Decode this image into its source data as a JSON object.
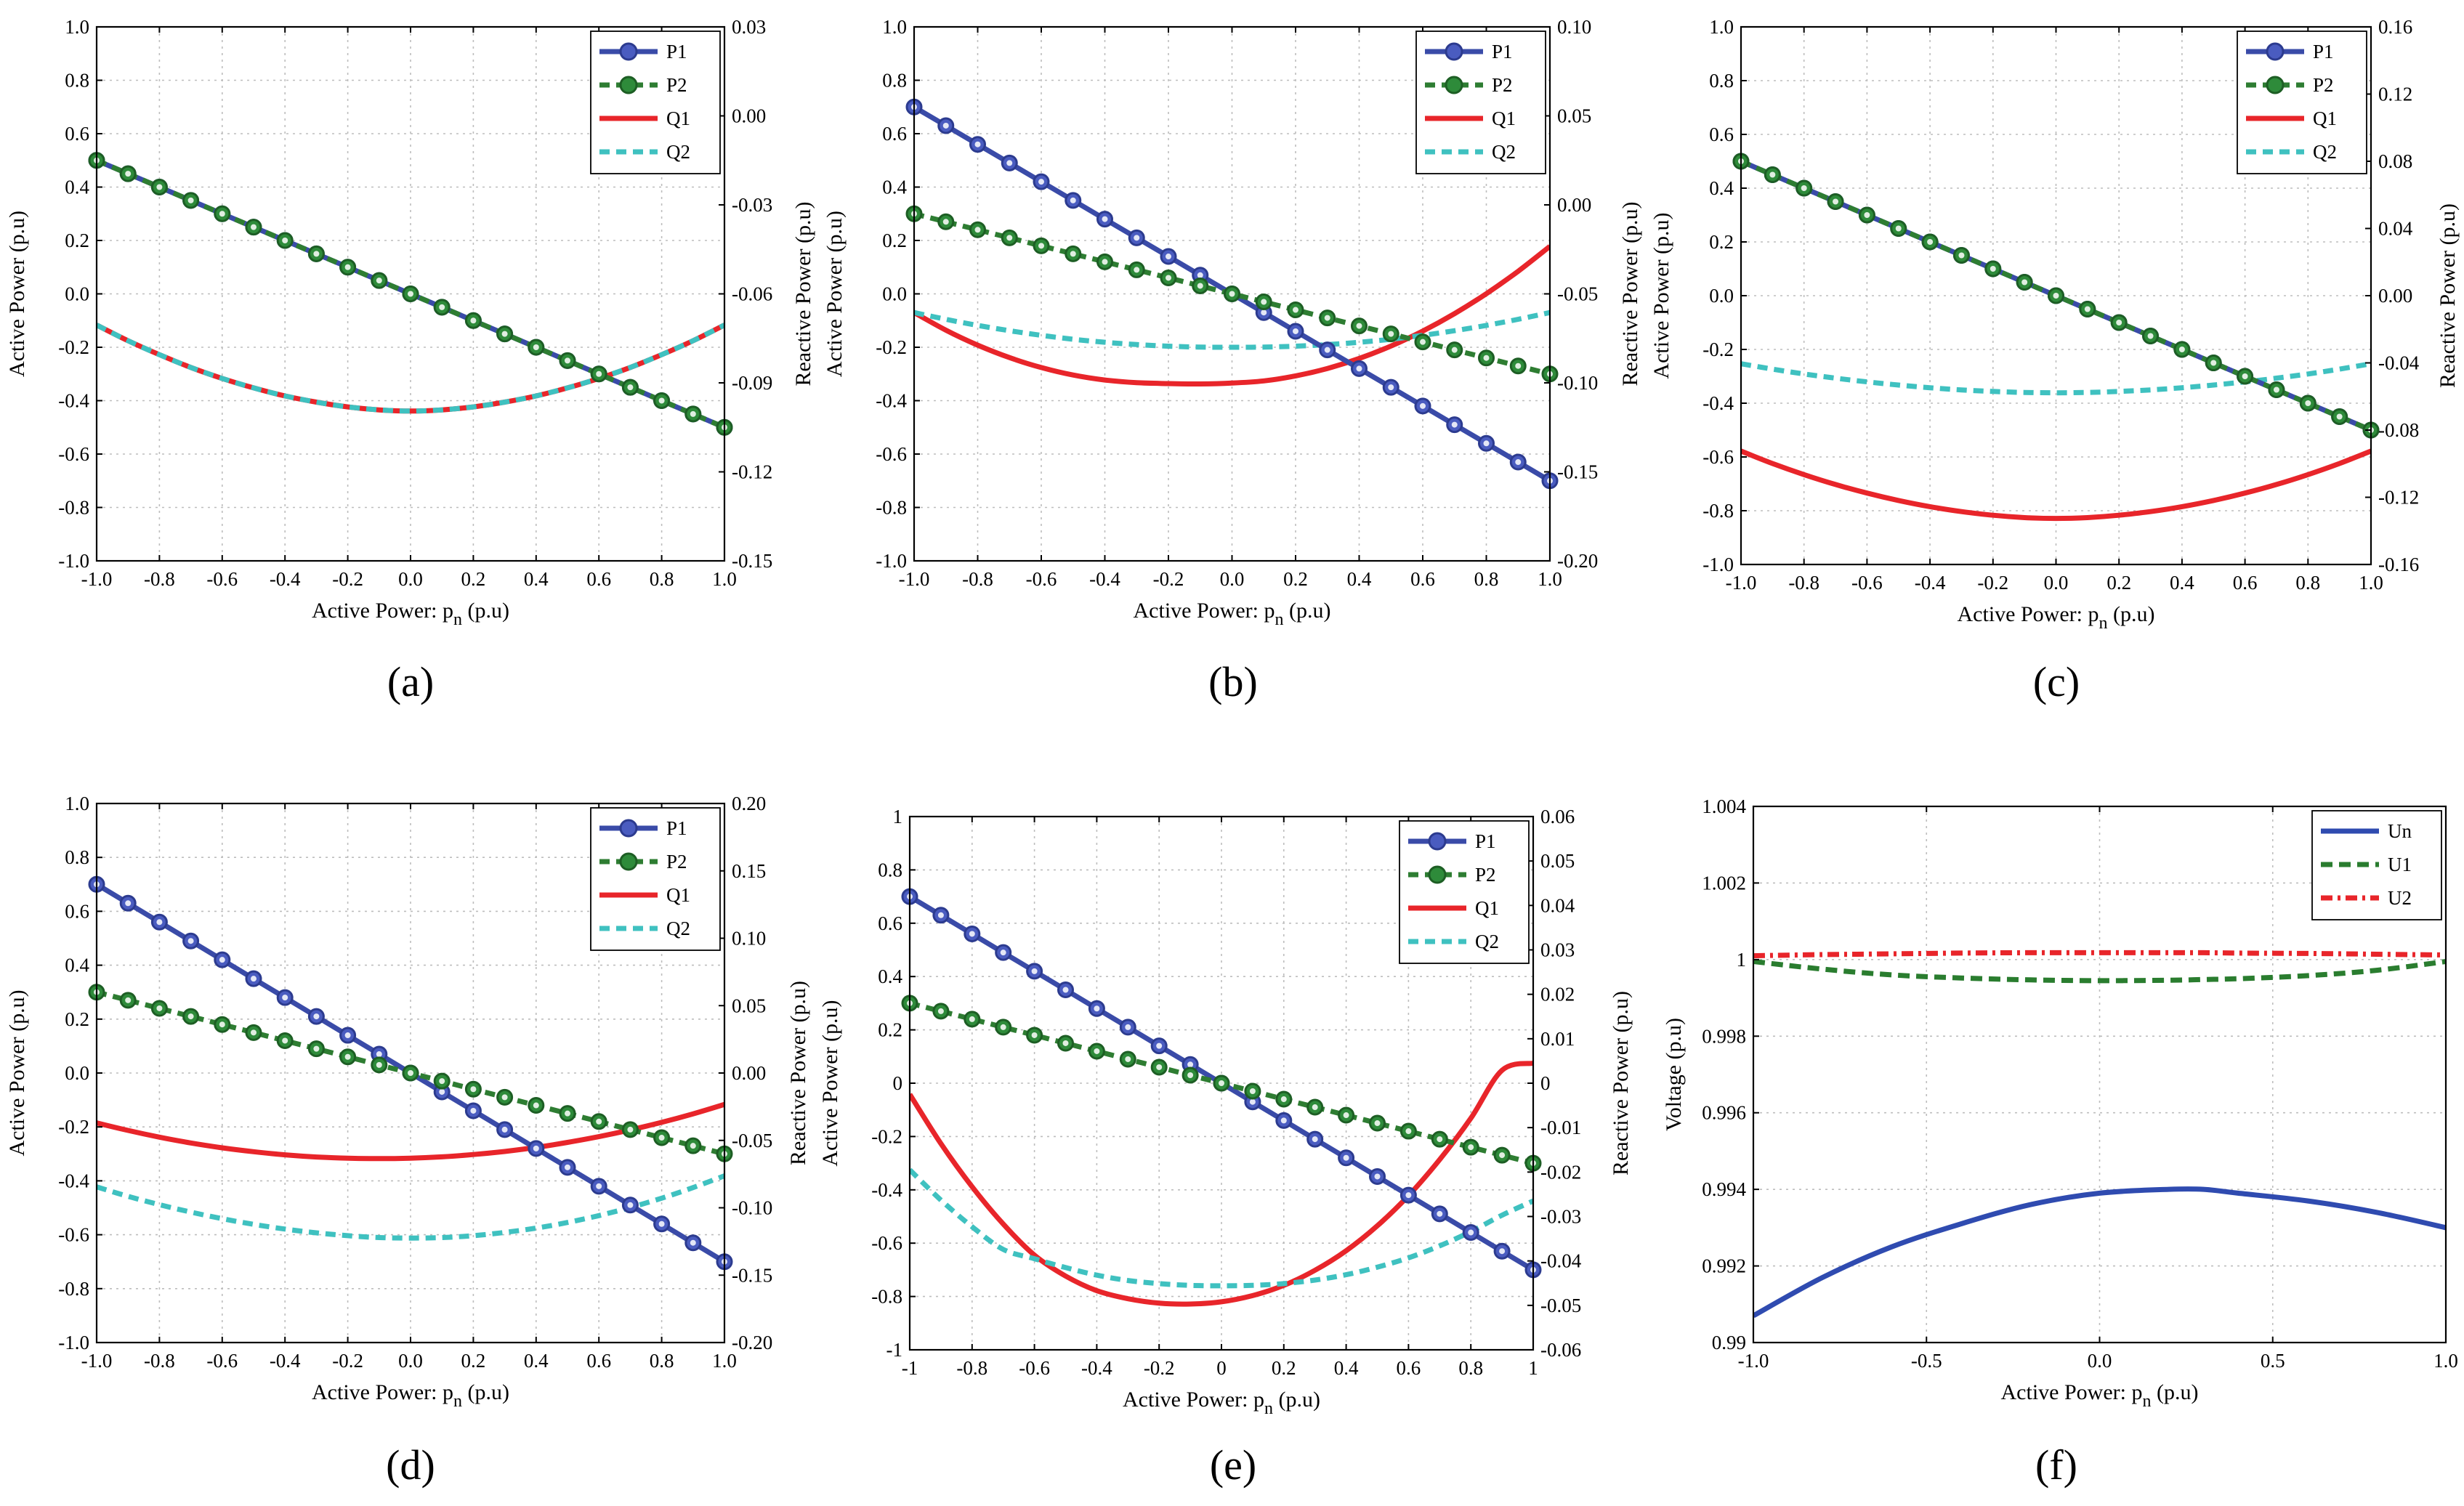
{
  "chart_data": [
    {
      "type": "line",
      "panel": "a",
      "sub_label": "(a)",
      "xlabel": "Active Power: p",
      "xlabel_sub": "n",
      "xlabel_suffix": " (p.u)",
      "ylabel": "Active Power (p.u)",
      "y2label": "Reactive Power (p.u)",
      "xlim": [
        -1,
        1
      ],
      "ylim": [
        -1,
        1
      ],
      "y2lim": [
        -0.15,
        0.03
      ],
      "xticks": [
        "-1.0",
        "-0.8",
        "-0.6",
        "-0.4",
        "-0.2",
        "0.0",
        "0.2",
        "0.4",
        "0.6",
        "0.8",
        "1.0"
      ],
      "yticks": [
        "-1.0",
        "-0.8",
        "-0.6",
        "-0.4",
        "-0.2",
        "0.0",
        "0.2",
        "0.4",
        "0.6",
        "0.8",
        "1.0"
      ],
      "y2ticks": [
        "-0.15",
        "-0.12",
        "-0.09",
        "-0.06",
        "-0.03",
        "0.00",
        "0.03"
      ],
      "legend": [
        "P1",
        "P2",
        "Q1",
        "Q2"
      ],
      "legend_position": "top-right",
      "x": [
        -1.0,
        -0.9,
        -0.8,
        -0.7,
        -0.6,
        -0.5,
        -0.4,
        -0.3,
        -0.2,
        -0.1,
        0.0,
        0.1,
        0.2,
        0.3,
        0.4,
        0.5,
        0.6,
        0.7,
        0.8,
        0.9,
        1.0
      ],
      "series": [
        {
          "name": "P1",
          "axis": "left",
          "values": [
            0.5,
            0.45,
            0.4,
            0.35,
            0.3,
            0.25,
            0.2,
            0.15,
            0.1,
            0.05,
            0.0,
            -0.05,
            -0.1,
            -0.15,
            -0.2,
            -0.25,
            -0.3,
            -0.35,
            -0.4,
            -0.45,
            -0.5
          ]
        },
        {
          "name": "P2",
          "axis": "left",
          "values": [
            0.5,
            0.45,
            0.4,
            0.35,
            0.3,
            0.25,
            0.2,
            0.15,
            0.1,
            0.05,
            0.0,
            -0.05,
            -0.1,
            -0.15,
            -0.2,
            -0.25,
            -0.3,
            -0.35,
            -0.4,
            -0.45,
            -0.5
          ]
        },
        {
          "name": "Q1",
          "axis": "right",
          "values": [
            -0.0705,
            -0.0758,
            -0.0805,
            -0.0848,
            -0.0885,
            -0.0917,
            -0.0944,
            -0.0965,
            -0.0981,
            -0.0991,
            -0.0995,
            -0.0991,
            -0.0981,
            -0.0965,
            -0.0944,
            -0.0917,
            -0.0885,
            -0.0848,
            -0.0805,
            -0.0758,
            -0.0705
          ]
        },
        {
          "name": "Q2",
          "axis": "right",
          "values": [
            -0.0705,
            -0.0758,
            -0.0805,
            -0.0848,
            -0.0885,
            -0.0917,
            -0.0944,
            -0.0965,
            -0.0981,
            -0.0991,
            -0.0995,
            -0.0991,
            -0.0981,
            -0.0965,
            -0.0944,
            -0.0917,
            -0.0885,
            -0.0848,
            -0.0805,
            -0.0758,
            -0.0705
          ]
        }
      ]
    },
    {
      "type": "line",
      "panel": "b",
      "sub_label": "(b)",
      "xlabel": "Active Power: p",
      "xlabel_sub": "n",
      "xlabel_suffix": " (p.u)",
      "ylabel": "Active Power (p.u)",
      "y2label": "Reactive Power (p.u)",
      "xlim": [
        -1,
        1
      ],
      "ylim": [
        -1,
        1
      ],
      "y2lim": [
        -0.2,
        0.1
      ],
      "xticks": [
        "-1.0",
        "-0.8",
        "-0.6",
        "-0.4",
        "-0.2",
        "0.0",
        "0.2",
        "0.4",
        "0.6",
        "0.8",
        "1.0"
      ],
      "yticks": [
        "-1.0",
        "-0.8",
        "-0.6",
        "-0.4",
        "-0.2",
        "0.0",
        "0.2",
        "0.4",
        "0.6",
        "0.8",
        "1.0"
      ],
      "y2ticks": [
        "-0.20",
        "-0.15",
        "-0.10",
        "-0.05",
        "0.00",
        "0.05",
        "0.10"
      ],
      "legend": [
        "P1",
        "P2",
        "Q1",
        "Q2"
      ],
      "legend_position": "top-right",
      "x": [
        -1.0,
        -0.9,
        -0.8,
        -0.7,
        -0.6,
        -0.5,
        -0.4,
        -0.3,
        -0.2,
        -0.1,
        0.0,
        0.1,
        0.2,
        0.3,
        0.4,
        0.5,
        0.6,
        0.7,
        0.8,
        0.9,
        1.0
      ],
      "series": [
        {
          "name": "P1",
          "axis": "left",
          "values": [
            0.7,
            0.63,
            0.56,
            0.49,
            0.42,
            0.35,
            0.28,
            0.21,
            0.14,
            0.07,
            0.0,
            -0.07,
            -0.14,
            -0.21,
            -0.28,
            -0.35,
            -0.42,
            -0.49,
            -0.56,
            -0.63,
            -0.7
          ]
        },
        {
          "name": "P2",
          "axis": "left",
          "values": [
            0.3,
            0.27,
            0.24,
            0.21,
            0.18,
            0.15,
            0.12,
            0.09,
            0.06,
            0.03,
            0.0,
            -0.03,
            -0.06,
            -0.09,
            -0.12,
            -0.15,
            -0.18,
            -0.21,
            -0.24,
            -0.27,
            -0.3
          ]
        },
        {
          "name": "Q1",
          "axis": "right",
          "values": [
            -0.0605,
            -0.0704,
            -0.0788,
            -0.0858,
            -0.0914,
            -0.0956,
            -0.0984,
            -0.0999,
            -0.1004,
            -0.1006,
            -0.1001,
            -0.0989,
            -0.0961,
            -0.0919,
            -0.0863,
            -0.0793,
            -0.0709,
            -0.0611,
            -0.0499,
            -0.0373,
            -0.0233
          ]
        },
        {
          "name": "Q2",
          "axis": "right",
          "values": [
            -0.0605,
            -0.0643,
            -0.0677,
            -0.0707,
            -0.0733,
            -0.0755,
            -0.0772,
            -0.0785,
            -0.0794,
            -0.0799,
            -0.08,
            -0.0799,
            -0.0794,
            -0.0785,
            -0.0772,
            -0.0755,
            -0.0733,
            -0.0707,
            -0.0677,
            -0.0643,
            -0.0605
          ]
        }
      ]
    },
    {
      "type": "line",
      "panel": "c",
      "sub_label": "(c)",
      "xlabel": "Active Power: p",
      "xlabel_sub": "n",
      "xlabel_suffix": " (p.u)",
      "ylabel": "Active Power (p.u)",
      "y2label": "Reactive Power (p.u)",
      "xlim": [
        -1,
        1
      ],
      "ylim": [
        -1,
        1
      ],
      "y2lim": [
        -0.16,
        0.16
      ],
      "xticks": [
        "-1.0",
        "-0.8",
        "-0.6",
        "-0.4",
        "-0.2",
        "0.0",
        "0.2",
        "0.4",
        "0.6",
        "0.8",
        "1.0"
      ],
      "yticks": [
        "-1.0",
        "-0.8",
        "-0.6",
        "-0.4",
        "-0.2",
        "0.0",
        "0.2",
        "0.4",
        "0.6",
        "0.8",
        "1.0"
      ],
      "y2ticks": [
        "-0.16",
        "-0.12",
        "-0.08",
        "-0.04",
        "0.00",
        "0.04",
        "0.08",
        "0.12",
        "0.16"
      ],
      "legend": [
        "P1",
        "P2",
        "Q1",
        "Q2"
      ],
      "legend_position": "top-right",
      "x": [
        -1.0,
        -0.9,
        -0.8,
        -0.7,
        -0.6,
        -0.5,
        -0.4,
        -0.3,
        -0.2,
        -0.1,
        0.0,
        0.1,
        0.2,
        0.3,
        0.4,
        0.5,
        0.6,
        0.7,
        0.8,
        0.9,
        1.0
      ],
      "series": [
        {
          "name": "P1",
          "axis": "left",
          "values": [
            0.5,
            0.45,
            0.4,
            0.35,
            0.3,
            0.25,
            0.2,
            0.15,
            0.1,
            0.05,
            0.0,
            -0.05,
            -0.1,
            -0.15,
            -0.2,
            -0.25,
            -0.3,
            -0.35,
            -0.4,
            -0.45,
            -0.5
          ]
        },
        {
          "name": "P2",
          "axis": "left",
          "values": [
            0.5,
            0.45,
            0.4,
            0.35,
            0.3,
            0.25,
            0.2,
            0.15,
            0.1,
            0.05,
            0.0,
            -0.05,
            -0.1,
            -0.15,
            -0.2,
            -0.25,
            -0.3,
            -0.35,
            -0.4,
            -0.45,
            -0.5
          ]
        },
        {
          "name": "Q1",
          "axis": "right",
          "values": [
            -0.0925,
            -0.0999,
            -0.1065,
            -0.1124,
            -0.1175,
            -0.1219,
            -0.1256,
            -0.1285,
            -0.1307,
            -0.1321,
            -0.1326,
            -0.1321,
            -0.1307,
            -0.1285,
            -0.1256,
            -0.1219,
            -0.1175,
            -0.1124,
            -0.1065,
            -0.0999,
            -0.0925
          ]
        },
        {
          "name": "Q2",
          "axis": "right",
          "values": [
            -0.0405,
            -0.0437,
            -0.0466,
            -0.0491,
            -0.0513,
            -0.0532,
            -0.0548,
            -0.0561,
            -0.057,
            -0.0576,
            -0.0578,
            -0.0576,
            -0.057,
            -0.0561,
            -0.0548,
            -0.0532,
            -0.0513,
            -0.0491,
            -0.0466,
            -0.0437,
            -0.0405
          ]
        }
      ]
    },
    {
      "type": "line",
      "panel": "d",
      "sub_label": "(d)",
      "xlabel": "Active Power: p",
      "xlabel_sub": "n",
      "xlabel_suffix": " (p.u)",
      "ylabel": "Active Power (p.u)",
      "y2label": "Reactive Power (p.u)",
      "xlim": [
        -1,
        1
      ],
      "ylim": [
        -1,
        1
      ],
      "y2lim": [
        -0.2,
        0.2
      ],
      "xticks": [
        "-1.0",
        "-0.8",
        "-0.6",
        "-0.4",
        "-0.2",
        "0.0",
        "0.2",
        "0.4",
        "0.6",
        "0.8",
        "1.0"
      ],
      "yticks": [
        "-1.0",
        "-0.8",
        "-0.6",
        "-0.4",
        "-0.2",
        "0.0",
        "0.2",
        "0.4",
        "0.6",
        "0.8",
        "1.0"
      ],
      "y2ticks": [
        "-0.20",
        "-0.15",
        "-0.10",
        "-0.05",
        "0.00",
        "0.05",
        "0.10",
        "0.15",
        "0.20"
      ],
      "legend": [
        "P1",
        "P2",
        "Q1",
        "Q2"
      ],
      "legend_position": "top-right",
      "x": [
        -1.0,
        -0.9,
        -0.8,
        -0.7,
        -0.6,
        -0.5,
        -0.4,
        -0.3,
        -0.2,
        -0.1,
        0.0,
        0.1,
        0.2,
        0.3,
        0.4,
        0.5,
        0.6,
        0.7,
        0.8,
        0.9,
        1.0
      ],
      "series": [
        {
          "name": "P1",
          "axis": "left",
          "values": [
            0.7,
            0.63,
            0.56,
            0.49,
            0.42,
            0.35,
            0.28,
            0.21,
            0.14,
            0.07,
            0.0,
            -0.07,
            -0.14,
            -0.21,
            -0.28,
            -0.35,
            -0.42,
            -0.49,
            -0.56,
            -0.63,
            -0.7
          ]
        },
        {
          "name": "P2",
          "axis": "left",
          "values": [
            0.3,
            0.27,
            0.24,
            0.21,
            0.18,
            0.15,
            0.12,
            0.09,
            0.06,
            0.03,
            0.0,
            -0.03,
            -0.06,
            -0.09,
            -0.12,
            -0.15,
            -0.18,
            -0.21,
            -0.24,
            -0.27,
            -0.3
          ]
        },
        {
          "name": "Q1",
          "axis": "right",
          "values": [
            -0.037,
            -0.0426,
            -0.0476,
            -0.0519,
            -0.0555,
            -0.0584,
            -0.0607,
            -0.0623,
            -0.0632,
            -0.0635,
            -0.0632,
            -0.0622,
            -0.0605,
            -0.0582,
            -0.0552,
            -0.0515,
            -0.0472,
            -0.0422,
            -0.0366,
            -0.0303,
            -0.0233
          ]
        },
        {
          "name": "Q2",
          "axis": "right",
          "values": [
            -0.0845,
            -0.0915,
            -0.0977,
            -0.1032,
            -0.1081,
            -0.1123,
            -0.1158,
            -0.1186,
            -0.1207,
            -0.1221,
            -0.1225,
            -0.1221,
            -0.1207,
            -0.1183,
            -0.1151,
            -0.1109,
            -0.1058,
            -0.0998,
            -0.0929,
            -0.085,
            -0.0763
          ]
        }
      ]
    },
    {
      "type": "line",
      "panel": "e",
      "sub_label": "(e)",
      "xlabel": "Active Power: p",
      "xlabel_sub": "n",
      "xlabel_suffix": " (p.u)",
      "ylabel": "Active Power (p.u)",
      "y2label": "Reactive Power (p.u)",
      "xlim": [
        -1,
        1
      ],
      "ylim": [
        -1,
        1
      ],
      "y2lim": [
        -0.06,
        0.06
      ],
      "xticks": [
        "-1",
        "-0.8",
        "-0.6",
        "-0.4",
        "-0.2",
        "0",
        "0.2",
        "0.4",
        "0.6",
        "0.8",
        "1"
      ],
      "yticks": [
        "-1",
        "-0.8",
        "-0.6",
        "-0.4",
        "-0.2",
        "0",
        "0.2",
        "0.4",
        "0.6",
        "0.8",
        "1"
      ],
      "y2ticks": [
        "-0.06",
        "-0.05",
        "-0.04",
        "-0.03",
        "-0.02",
        "-0.01",
        "0",
        "0.01",
        "0.02",
        "0.03",
        "0.04",
        "0.05",
        "0.06"
      ],
      "legend": [
        "P1",
        "P2",
        "Q1",
        "Q2"
      ],
      "legend_position": "top-right",
      "x": [
        -1.0,
        -0.9,
        -0.8,
        -0.7,
        -0.6,
        -0.5,
        -0.4,
        -0.3,
        -0.2,
        -0.1,
        0.0,
        0.1,
        0.2,
        0.3,
        0.4,
        0.5,
        0.6,
        0.7,
        0.8,
        0.9,
        1.0
      ],
      "series": [
        {
          "name": "P1",
          "axis": "left",
          "values": [
            0.7,
            0.63,
            0.56,
            0.49,
            0.42,
            0.35,
            0.28,
            0.21,
            0.14,
            0.07,
            0.0,
            -0.07,
            -0.14,
            -0.21,
            -0.28,
            -0.35,
            -0.42,
            -0.49,
            -0.56,
            -0.63,
            -0.7
          ]
        },
        {
          "name": "P2",
          "axis": "left",
          "values": [
            0.3,
            0.27,
            0.24,
            0.21,
            0.18,
            0.15,
            0.12,
            0.09,
            0.06,
            0.03,
            0.0,
            -0.03,
            -0.06,
            -0.09,
            -0.12,
            -0.15,
            -0.18,
            -0.21,
            -0.24,
            -0.27,
            -0.3
          ]
        },
        {
          "name": "Q1",
          "axis": "right",
          "values": [
            -0.0025,
            -0.0136,
            -0.0233,
            -0.0317,
            -0.0387,
            -0.0434,
            -0.0467,
            -0.0485,
            -0.0495,
            -0.0497,
            -0.0492,
            -0.0478,
            -0.0455,
            -0.0421,
            -0.0377,
            -0.0321,
            -0.0253,
            -0.0172,
            -0.0079,
            0.0029,
            0.0045
          ]
        },
        {
          "name": "Q2",
          "axis": "right",
          "values": [
            -0.0195,
            -0.0263,
            -0.0323,
            -0.0374,
            -0.0395,
            -0.0415,
            -0.0432,
            -0.0444,
            -0.0451,
            -0.0455,
            -0.0456,
            -0.0455,
            -0.0451,
            -0.0443,
            -0.0431,
            -0.0414,
            -0.0393,
            -0.0366,
            -0.0334,
            -0.0297,
            -0.0265
          ]
        }
      ]
    },
    {
      "type": "line",
      "panel": "f",
      "sub_label": "(f)",
      "xlabel": "Active Power: p",
      "xlabel_sub": "n",
      "xlabel_suffix": " (p.u)",
      "ylabel": "Voltage (p.u)",
      "y2label": "",
      "xlim": [
        -1,
        1
      ],
      "ylim": [
        0.99,
        1.004
      ],
      "xticks": [
        "-1.0",
        "-0.5",
        "0.0",
        "0.5",
        "1.0"
      ],
      "yticks": [
        "0.99",
        "0.992",
        "0.994",
        "0.996",
        "0.998",
        "1",
        "1.002",
        "1.004"
      ],
      "legend": [
        "Un",
        "U1",
        "U2"
      ],
      "legend_position": "top-right",
      "x": [
        -1.0,
        -0.8,
        -0.6,
        -0.4,
        -0.2,
        0.0,
        0.2,
        0.3,
        0.4,
        0.6,
        0.8,
        1.0
      ],
      "series": [
        {
          "name": "Un",
          "axis": "left",
          "values": [
            0.9907,
            0.9917,
            0.9925,
            0.9931,
            0.9936,
            0.9939,
            0.994,
            0.994,
            0.9939,
            0.9937,
            0.9934,
            0.993
          ]
        },
        {
          "name": "U1",
          "axis": "left",
          "values": [
            0.99995,
            0.99975,
            0.9996,
            0.99952,
            0.99947,
            0.99945,
            0.99946,
            0.99948,
            0.9995,
            0.99958,
            0.99972,
            0.99995
          ]
        },
        {
          "name": "U2",
          "axis": "left",
          "values": [
            1.0001,
            1.00013,
            1.00015,
            1.00017,
            1.00018,
            1.00018,
            1.00018,
            1.00018,
            1.00017,
            1.00016,
            1.00014,
            1.00012
          ]
        }
      ]
    }
  ],
  "colors": {
    "P1": "#3a4ba8",
    "P2": "#2e7d32",
    "Q1": "#e8252a",
    "Q2": "#3fc1c0",
    "Un": "#2f4bb0",
    "U1": "#2a7d2f",
    "U2": "#e8252a"
  }
}
